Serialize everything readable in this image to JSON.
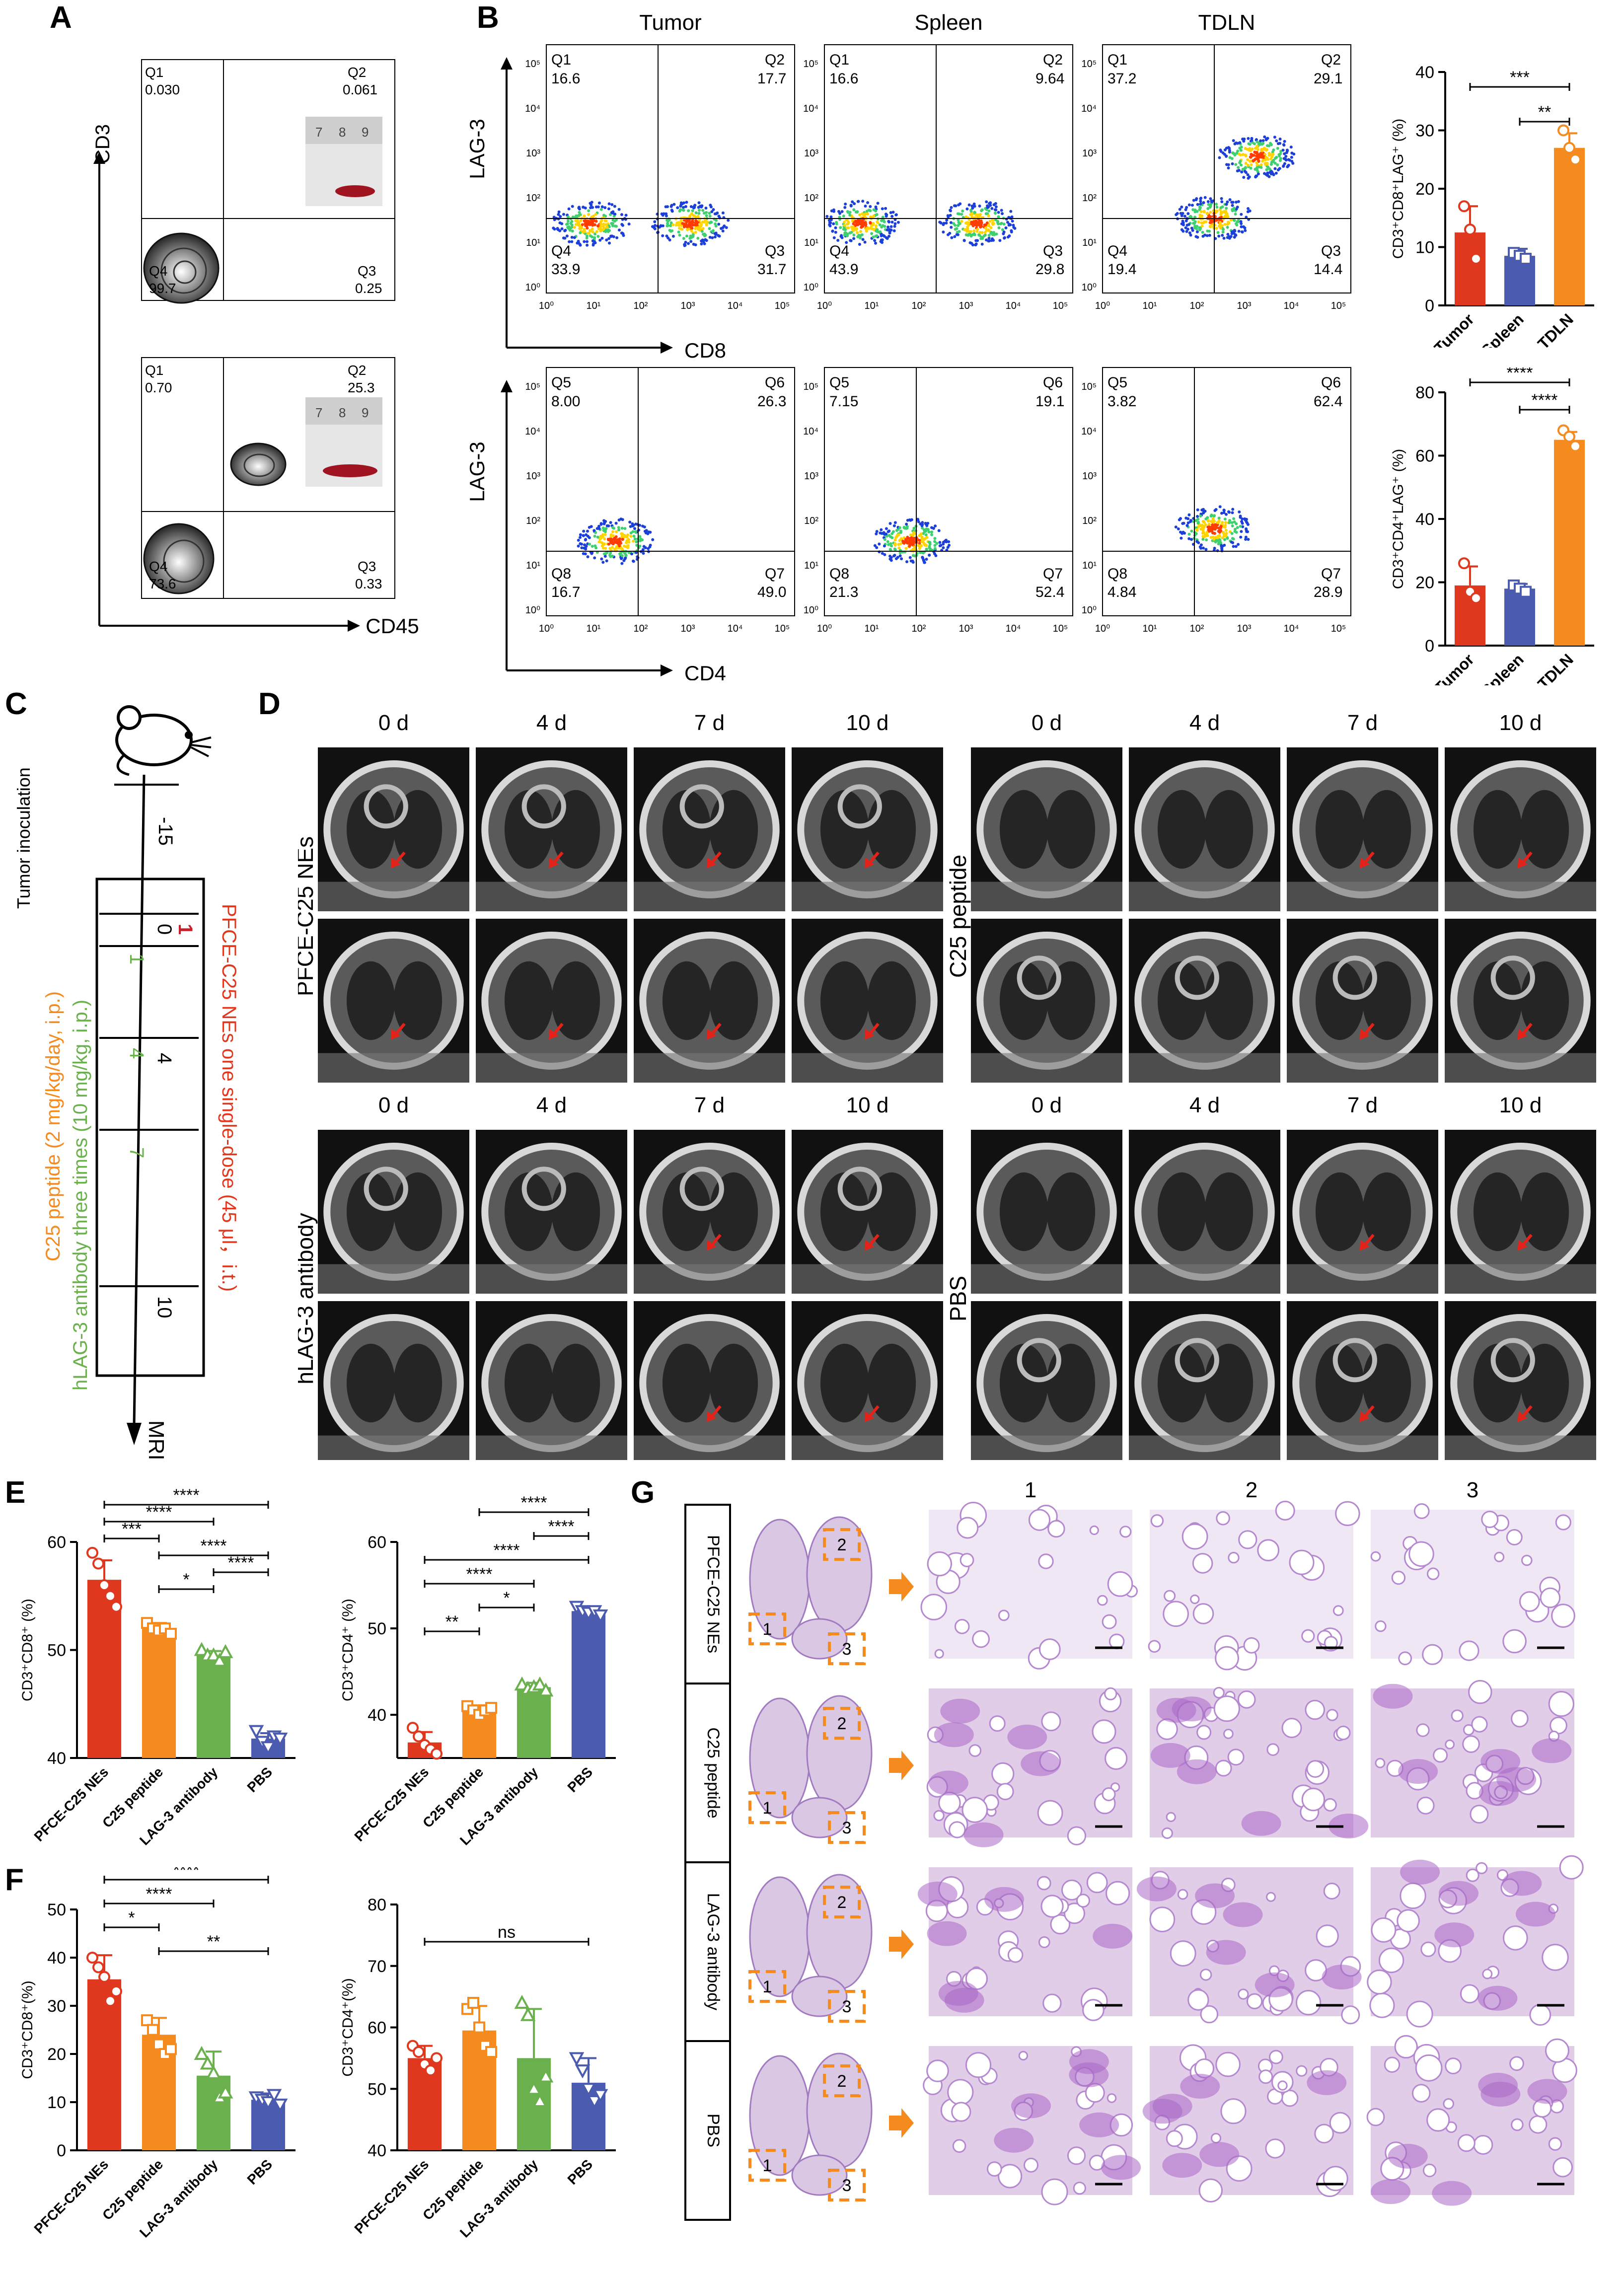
{
  "panel_letters": {
    "A": "A",
    "B": "B",
    "C": "C",
    "D": "D",
    "E": "E",
    "F": "F",
    "G": "G"
  },
  "quad_ticks": [
    "10⁰",
    "10¹",
    "10²",
    "10³",
    "10⁴",
    "10⁵"
  ],
  "colors": {
    "pfce": "#e0381e",
    "c25": "#f58b1f",
    "lag3": "#6ab04c",
    "pbs": "#4a5bb0",
    "spleen": "#4a5bb0",
    "tdln": "#f58b1f",
    "tumor": "#e0381e"
  },
  "panelA": {
    "ylabel": "CD3",
    "xlabel": "CD45",
    "plots": [
      {
        "q1": "Q1",
        "q1v": "0.030",
        "q2": "Q2",
        "q2v": "0.061",
        "q3": "Q3",
        "q3v": "0.25",
        "q4": "Q4",
        "q4v": "99.7"
      },
      {
        "q1": "Q1",
        "q1v": "0.70",
        "q2": "Q2",
        "q2v": "25.3",
        "q3": "Q3",
        "q3v": "0.33",
        "q4": "Q4",
        "q4v": "73.6"
      }
    ],
    "ruler": [
      "7",
      "8",
      "9"
    ]
  },
  "panelB": {
    "columns": [
      "Tumor",
      "Spleen",
      "TDLN"
    ],
    "row1": {
      "ylabel": "LAG-3",
      "xlabel": "CD8",
      "labels": [
        "Q1",
        "Q2",
        "Q3",
        "Q4"
      ],
      "plots": [
        [
          "16.6",
          "17.7",
          "31.7",
          "33.9"
        ],
        [
          "16.6",
          "9.64",
          "29.8",
          "43.9"
        ],
        [
          "37.2",
          "29.1",
          "14.4",
          "19.4"
        ]
      ]
    },
    "row2": {
      "ylabel": "LAG-3",
      "xlabel": "CD4",
      "labels": [
        "Q5",
        "Q6",
        "Q7",
        "Q8"
      ],
      "plots": [
        [
          "8.00",
          "26.3",
          "49.0",
          "16.7"
        ],
        [
          "7.15",
          "19.1",
          "52.4",
          "21.3"
        ],
        [
          "3.82",
          "62.4",
          "28.9",
          "4.84"
        ]
      ]
    }
  },
  "chart_data": [
    {
      "id": "B-top",
      "type": "bar",
      "categories": [
        "Tumor",
        "Spleen",
        "TDLN"
      ],
      "values": [
        12.5,
        8.5,
        27
      ],
      "errors": [
        4.5,
        1.2,
        2.5
      ],
      "points": [
        [
          17,
          13,
          8
        ],
        [
          9,
          8.5,
          8
        ],
        [
          30,
          27,
          25
        ]
      ],
      "ylabel": "CD3⁺CD8⁺LAG⁺ (%)",
      "ylim": [
        0,
        40
      ],
      "yticks": [
        0,
        10,
        20,
        30,
        40
      ],
      "sig": [
        {
          "from": 0,
          "to": 2,
          "label": "***"
        },
        {
          "from": 1,
          "to": 2,
          "label": "**"
        }
      ]
    },
    {
      "id": "B-bottom",
      "type": "bar",
      "categories": [
        "Tumor",
        "Spleen",
        "TDLN"
      ],
      "values": [
        19,
        18,
        65
      ],
      "errors": [
        6,
        1.5,
        2.5
      ],
      "points": [
        [
          26,
          17,
          15
        ],
        [
          19,
          18,
          17
        ],
        [
          68,
          66,
          63
        ]
      ],
      "ylabel": "CD3⁺CD4⁺LAG⁺ (%)",
      "ylim": [
        0,
        80
      ],
      "yticks": [
        0,
        20,
        40,
        60,
        80
      ],
      "sig": [
        {
          "from": 0,
          "to": 2,
          "label": "****"
        },
        {
          "from": 1,
          "to": 2,
          "label": "****"
        }
      ]
    },
    {
      "id": "E-left",
      "type": "bar",
      "categories": [
        "PFCE-C25 NEs",
        "C25 peptide",
        "LAG-3 antibody",
        "PBS"
      ],
      "values": [
        56.5,
        52,
        49.5,
        41.8
      ],
      "errors": [
        1.8,
        0.5,
        0.4,
        0.5
      ],
      "points": [
        [
          59,
          58,
          56,
          55,
          54
        ],
        [
          52.5,
          52,
          51.8,
          52,
          51.5
        ],
        [
          50,
          49.5,
          49.5,
          49,
          49.8
        ],
        [
          42.5,
          41.5,
          41,
          42,
          41.8
        ]
      ],
      "ylabel": "CD3⁺CD8⁺ (%)",
      "ylim": [
        40,
        60
      ],
      "yticks": [
        40,
        50,
        60
      ],
      "sig": [
        {
          "from": 0,
          "to": 3,
          "label": "****"
        },
        {
          "from": 0,
          "to": 2,
          "label": "****"
        },
        {
          "from": 0,
          "to": 1,
          "label": "***"
        },
        {
          "from": 1,
          "to": 3,
          "label": "****"
        },
        {
          "from": 2,
          "to": 3,
          "label": "****"
        },
        {
          "from": 1,
          "to": 2,
          "label": "*"
        }
      ]
    },
    {
      "id": "E-right",
      "type": "bar",
      "categories": [
        "PFCE-C25 NEs",
        "C25 peptide",
        "LAG-3 antibody",
        "PBS"
      ],
      "values": [
        36.8,
        40.5,
        43.2,
        52
      ],
      "errors": [
        1.2,
        0.6,
        0.5,
        0.5
      ],
      "points": [
        [
          38.5,
          37.5,
          36.5,
          36,
          35.5
        ],
        [
          41,
          40.5,
          40,
          40.5,
          40.8
        ],
        [
          43.5,
          43,
          43.2,
          43.5,
          42.8
        ],
        [
          52.5,
          52,
          51.8,
          52,
          51.5
        ]
      ],
      "ylabel": "CD3⁺CD4⁺ (%)",
      "ylim": [
        35,
        60
      ],
      "yticks": [
        40,
        50,
        60
      ],
      "sig": [
        {
          "from": 1,
          "to": 3,
          "label": "****"
        },
        {
          "from": 2,
          "to": 3,
          "label": "****"
        },
        {
          "from": 0,
          "to": 3,
          "label": "****"
        },
        {
          "from": 0,
          "to": 2,
          "label": "****"
        },
        {
          "from": 1,
          "to": 2,
          "label": "*"
        },
        {
          "from": 0,
          "to": 1,
          "label": "**"
        }
      ]
    },
    {
      "id": "F-left",
      "type": "bar",
      "categories": [
        "PFCE-C25 NEs",
        "C25 peptide",
        "LAG-3 antibody",
        "PBS"
      ],
      "values": [
        35.5,
        24,
        15.5,
        10.5
      ],
      "errors": [
        5,
        3.5,
        5,
        1.3
      ],
      "points": [
        [
          40,
          38,
          36,
          31,
          33
        ],
        [
          27,
          25,
          22,
          20,
          21
        ],
        [
          20,
          18,
          16,
          11,
          12
        ],
        [
          11,
          10.5,
          10,
          11.5,
          9.5
        ]
      ],
      "ylabel": "CD3⁺CD8⁺(%)",
      "ylim": [
        0,
        50
      ],
      "yticks": [
        0,
        10,
        20,
        30,
        40,
        50
      ],
      "sig": [
        {
          "from": 0,
          "to": 3,
          "label": "****"
        },
        {
          "from": 0,
          "to": 2,
          "label": "****"
        },
        {
          "from": 0,
          "to": 1,
          "label": "*"
        },
        {
          "from": 1,
          "to": 3,
          "label": "**"
        }
      ]
    },
    {
      "id": "F-right",
      "type": "bar",
      "categories": [
        "PFCE-C25 NEs",
        "C25 peptide",
        "LAG-3 antibody",
        "PBS"
      ],
      "values": [
        55,
        59.5,
        55,
        51
      ],
      "errors": [
        2,
        4,
        8,
        4
      ],
      "points": [
        [
          57,
          56,
          54,
          53,
          55
        ],
        [
          63,
          64,
          60,
          57,
          56
        ],
        [
          64,
          62,
          50,
          48,
          52
        ],
        [
          55,
          53,
          50,
          48,
          49
        ]
      ],
      "ylabel": "CD3⁺CD4⁺(%)",
      "ylim": [
        40,
        80
      ],
      "yticks": [
        40,
        50,
        60,
        70,
        80
      ],
      "sig": [
        {
          "from": 0,
          "to": 3,
          "label": "ns"
        }
      ]
    }
  ],
  "panelC": {
    "steps": [
      {
        "label": "Tumor inoculation",
        "value": "-15"
      },
      {
        "value": "0"
      },
      {
        "value": "4"
      },
      {
        "value": "10"
      }
    ],
    "red_text": "PFCE-C25 NEs one single-dose (45 μl，i.t.)",
    "green_text": "hLAG-3 antibody three times (10 mg/kg, i.p.)",
    "orange_text": "C25 peptide (2 mg/kg/day, i.p.)",
    "red_mark": "1",
    "green_marks": [
      "1",
      "4",
      "7"
    ],
    "mri": "MRI"
  },
  "panelD": {
    "days": [
      "0 d",
      "4 d",
      "7 d",
      "10 d"
    ],
    "groups": [
      "PFCE-C25 NEs",
      "C25 peptide",
      "hLAG-3 antibody",
      "PBS"
    ]
  },
  "panelG": {
    "columns": [
      "1",
      "2",
      "3"
    ],
    "rows": [
      "PFCE-C25 NEs",
      "C25 peptide",
      "LAG-3 antibody",
      "PBS"
    ],
    "roi": [
      "1",
      "2",
      "3"
    ]
  }
}
